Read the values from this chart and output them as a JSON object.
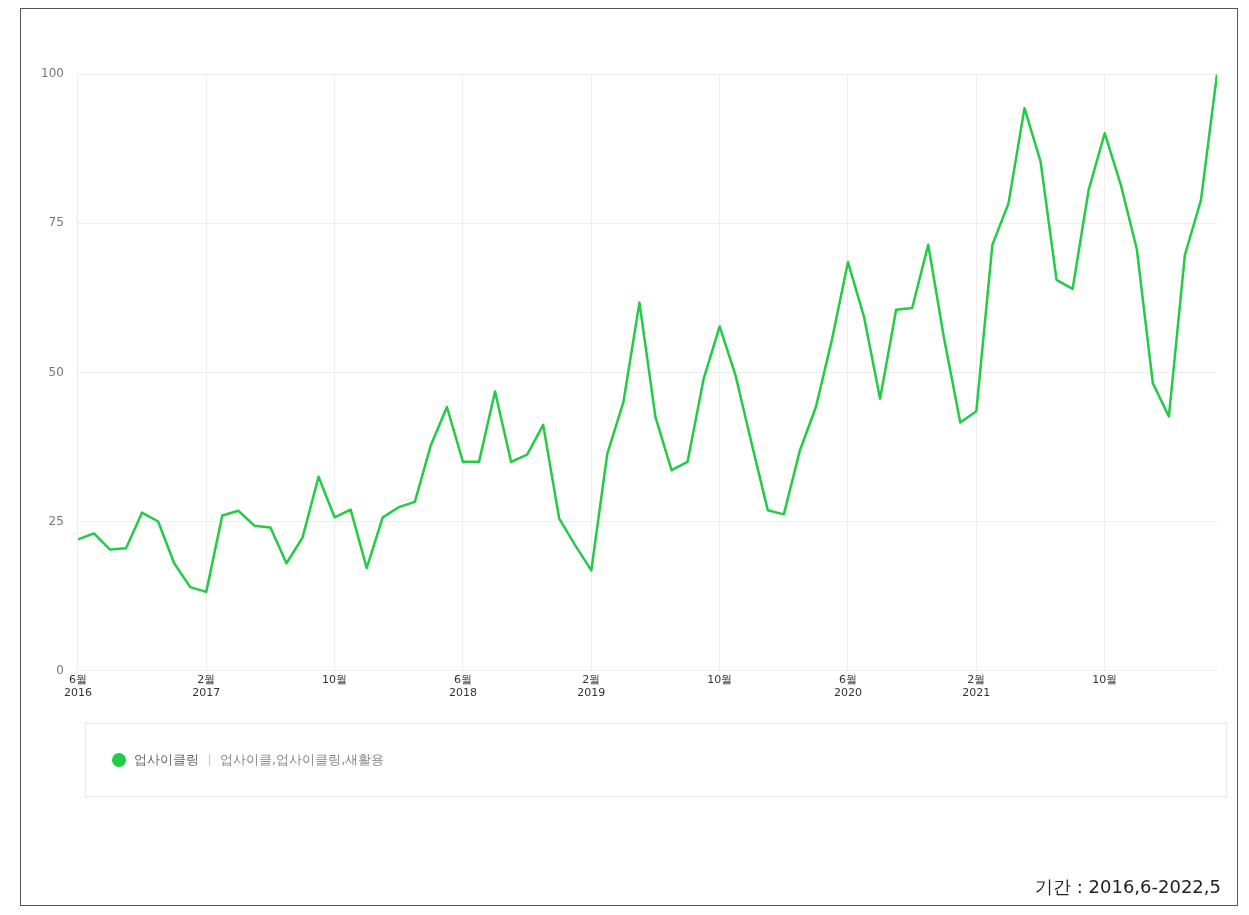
{
  "chart_data": {
    "type": "line",
    "x": [
      "2016-06",
      "2016-07",
      "2016-08",
      "2016-09",
      "2016-10",
      "2016-11",
      "2016-12",
      "2017-01",
      "2017-02",
      "2017-03",
      "2017-04",
      "2017-05",
      "2017-06",
      "2017-07",
      "2017-08",
      "2017-09",
      "2017-10",
      "2017-11",
      "2017-12",
      "2018-01",
      "2018-02",
      "2018-03",
      "2018-04",
      "2018-05",
      "2018-06",
      "2018-07",
      "2018-08",
      "2018-09",
      "2018-10",
      "2018-11",
      "2018-12",
      "2019-01",
      "2019-02",
      "2019-03",
      "2019-04",
      "2019-05",
      "2019-06",
      "2019-07",
      "2019-08",
      "2019-09",
      "2019-10",
      "2019-11",
      "2019-12",
      "2020-01",
      "2020-02",
      "2020-03",
      "2020-04",
      "2020-05",
      "2020-06",
      "2020-07",
      "2020-08",
      "2020-09",
      "2020-10",
      "2020-11",
      "2020-12",
      "2021-01",
      "2021-02",
      "2021-03",
      "2021-04",
      "2021-05",
      "2021-06",
      "2021-07",
      "2021-08",
      "2021-09",
      "2021-10",
      "2021-11",
      "2021-12",
      "2022-01",
      "2022-02",
      "2022-03",
      "2022-04",
      "2022-05"
    ],
    "series": [
      {
        "name": "업사이클링",
        "color": "#22cc44",
        "values": [
          22,
          23,
          20.3,
          20.5,
          26.5,
          25,
          18,
          14,
          13.2,
          26,
          26.8,
          24.3,
          24,
          18,
          22.3,
          32.5,
          25.7,
          27,
          17.2,
          25.7,
          27.4,
          28.3,
          37.8,
          44.2,
          35,
          35,
          46.8,
          35,
          36.2,
          41.2,
          25.5,
          21,
          16.8,
          36.4,
          45,
          61.7,
          42.5,
          33.6,
          35,
          48.9,
          57.7,
          49.4,
          38,
          26.9,
          26.2,
          36.9,
          44.2,
          55.5,
          68.5,
          59.3,
          45.6,
          60.5,
          60.8,
          71.4,
          55.5,
          41.6,
          43.5,
          71.4,
          78.3,
          94.3,
          85.4,
          65.5,
          64,
          80.6,
          90.1,
          81.5,
          70.7,
          48.2,
          42.6,
          69.7,
          78.9,
          100
        ]
      }
    ],
    "xlim": [
      "2016-06",
      "2022-05"
    ],
    "xticks": [
      {
        "value": "2016-06",
        "label": "6월\n2016"
      },
      {
        "value": "2017-02",
        "label": "2월\n2017"
      },
      {
        "value": "2017-10",
        "label": "10월"
      },
      {
        "value": "2018-06",
        "label": "6월\n2018"
      },
      {
        "value": "2019-02",
        "label": "2월\n2019"
      },
      {
        "value": "2019-10",
        "label": "10월"
      },
      {
        "value": "2020-06",
        "label": "6월\n2020"
      },
      {
        "value": "2021-02",
        "label": "2월\n2021"
      },
      {
        "value": "2021-10",
        "label": "10월"
      }
    ],
    "ylim": [
      0,
      100
    ],
    "yticks": [
      0,
      25,
      50,
      75,
      100
    ],
    "grid": true,
    "legend": "bottom",
    "marker": "none",
    "line_style": "solid",
    "annotations": [
      "업사이클,업사이클링,새활용",
      "기간 : 2016,6-2022,5"
    ]
  }
}
